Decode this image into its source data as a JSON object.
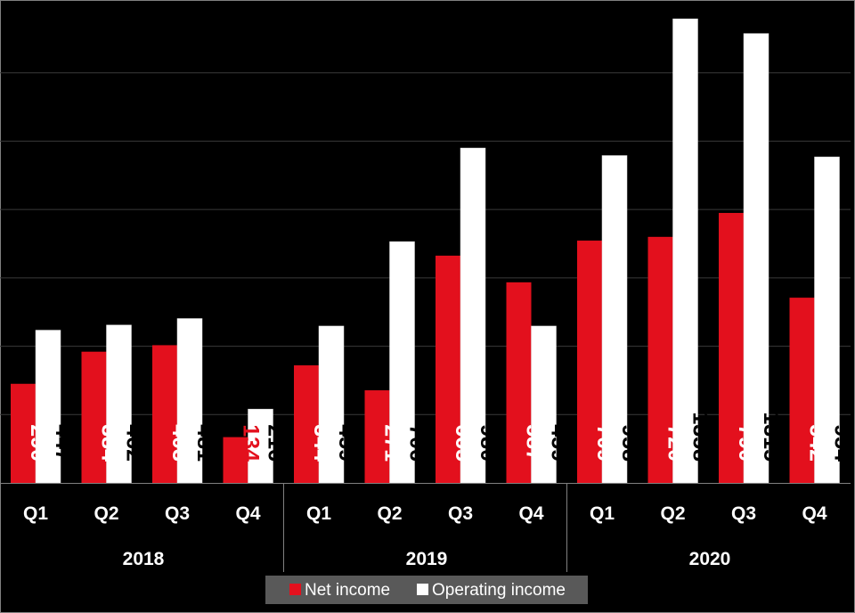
{
  "chart_data": {
    "type": "bar",
    "title": "",
    "xlabel": "",
    "ylabel": "",
    "ylim": [
      0,
      1400
    ],
    "grid": true,
    "groups": [
      {
        "label": "2018",
        "categories": [
          "Q1",
          "Q2",
          "Q3",
          "Q4"
        ]
      },
      {
        "label": "2019",
        "categories": [
          "Q1",
          "Q2",
          "Q3",
          "Q4"
        ]
      },
      {
        "label": "2020",
        "categories": [
          "Q1",
          "Q2",
          "Q3",
          "Q4"
        ]
      }
    ],
    "series": [
      {
        "name": "Net income",
        "color": "#e3101d",
        "label_color": "#ffffff",
        "values": [
          290,
          384,
          403,
          134,
          344,
          271,
          665,
          587,
          709,
          720,
          790,
          542
        ]
      },
      {
        "name": "Operating income",
        "color": "#ffffff",
        "label_color": "#000000",
        "values": [
          447,
          462,
          481,
          216,
          459,
          706,
          980,
          459,
          958,
          1358,
          1315,
          954
        ]
      }
    ],
    "highlight_label_color": "#e3101d",
    "legend": {
      "position": "bottom-center",
      "background": "#595959"
    }
  }
}
